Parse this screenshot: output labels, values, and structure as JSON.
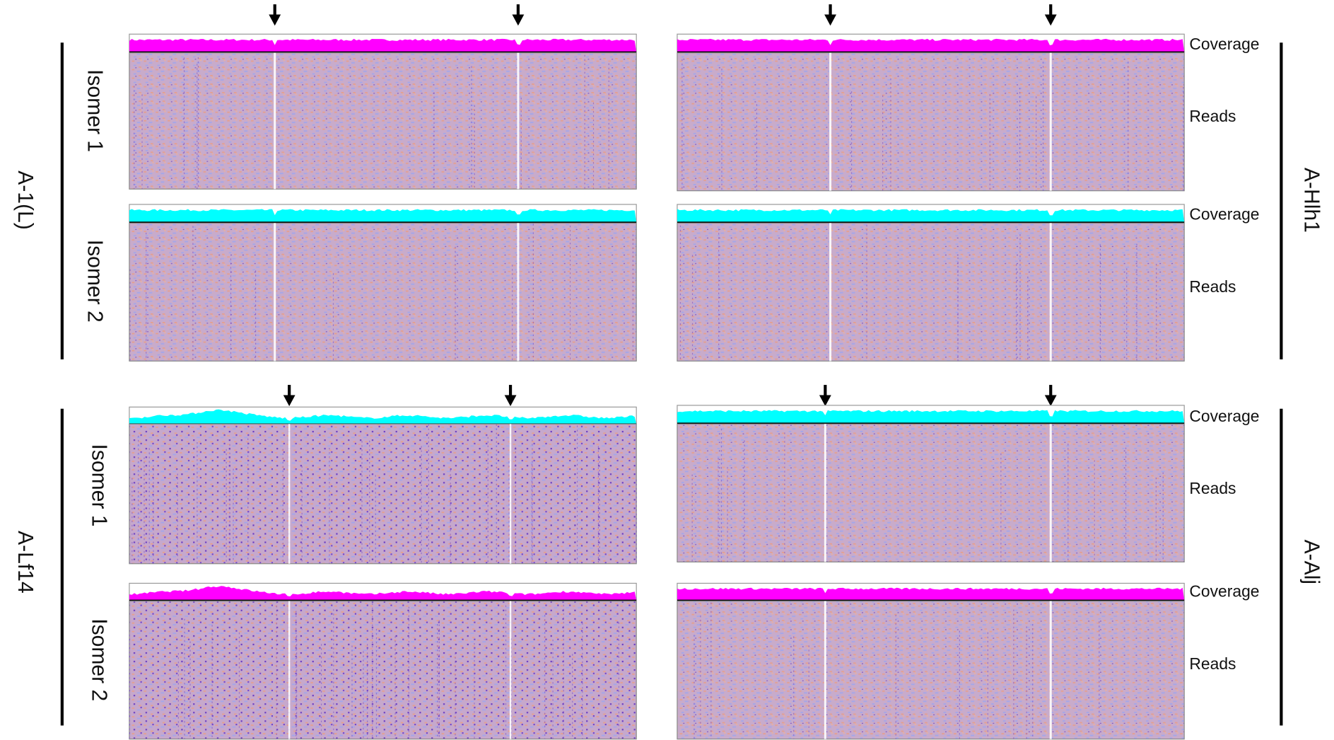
{
  "left_figures": [
    {
      "sample": "A-1(L)",
      "isomers": [
        "Isomer 1",
        "Isomer 2"
      ]
    },
    {
      "sample": "A-Lf14",
      "isomers": [
        "Isomer 1",
        "Isomer 2"
      ]
    }
  ],
  "right_figures": [
    {
      "sample": "A-Hlh1",
      "tracks": [
        {
          "coverage": "Coverage",
          "reads": "Reads"
        },
        {
          "coverage": "Coverage",
          "reads": "Reads"
        }
      ]
    },
    {
      "sample": "A-Alj",
      "tracks": [
        {
          "coverage": "Coverage",
          "reads": "Reads"
        },
        {
          "coverage": "Coverage",
          "reads": "Reads"
        }
      ]
    }
  ]
}
